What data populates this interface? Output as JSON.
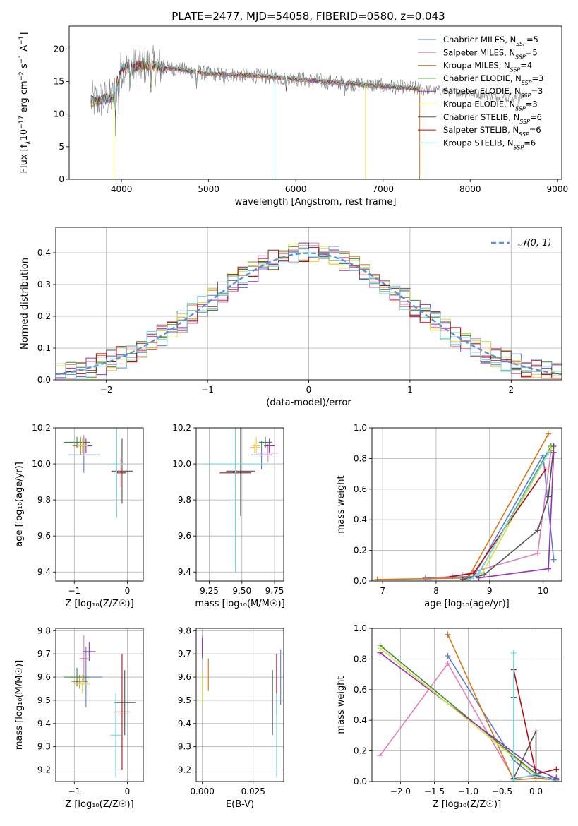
{
  "title": "PLATE=2477, MJD=54058, FIBERID=0580, z=0.043",
  "colors": {
    "Chabrier MILES": "#5b7fd6",
    "Salpeter MILES": "#e07fb8",
    "Kroupa MILES": "#d97818",
    "Chabrier ELODIE": "#3b8c3b",
    "Salpeter ELODIE": "#9b30b8",
    "Kroupa ELODIE": "#d4e040",
    "Chabrier STELIB": "#555555",
    "Salpeter STELIB": "#b01010",
    "Kroupa STELIB": "#70d8e0"
  },
  "chart_data": [
    {
      "id": "spectrum",
      "type": "line",
      "xlabel": "wavelength [Angstrom, rest frame]",
      "ylabel_parts": [
        "Flux [f",
        "λ",
        "10",
        "−17",
        " erg cm",
        "−2",
        " s",
        "−1",
        " A",
        "−1",
        "]"
      ],
      "xlim": [
        3400,
        9050
      ],
      "ylim": [
        0,
        23.5
      ],
      "xticks": [
        4000,
        5000,
        6000,
        7000,
        8000,
        9000
      ],
      "yticks": [
        0,
        5,
        10,
        15,
        20
      ],
      "grid": false,
      "legend_position": "top-right",
      "legend": [
        {
          "name": "Chabrier MILES",
          "nssp": "5"
        },
        {
          "name": "Salpeter MILES",
          "nssp": "5"
        },
        {
          "name": "Kroupa MILES",
          "nssp": "4"
        },
        {
          "name": "Chabrier ELODIE",
          "nssp": "3"
        },
        {
          "name": "Salpeter ELODIE",
          "nssp": "3"
        },
        {
          "name": "Kroupa ELODIE",
          "nssp": "3"
        },
        {
          "name": "Chabrier STELIB",
          "nssp": "6"
        },
        {
          "name": "Salpeter STELIB",
          "nssp": "6"
        },
        {
          "name": "Kroupa STELIB",
          "nssp": "6"
        }
      ],
      "nssp_label": "N",
      "nssp_sub": "SSP",
      "continuum": [
        [
          3650,
          12.0
        ],
        [
          3900,
          12.5
        ],
        [
          4000,
          17.0
        ],
        [
          4300,
          17.5
        ],
        [
          4700,
          16.8
        ],
        [
          5000,
          16.2
        ],
        [
          5500,
          15.9
        ],
        [
          6000,
          15.4
        ],
        [
          6500,
          14.8
        ],
        [
          7000,
          14.3
        ],
        [
          7400,
          13.9
        ],
        [
          8000,
          13.2
        ],
        [
          8500,
          12.4
        ],
        [
          8600,
          12.8
        ]
      ],
      "data_end": 8650,
      "model_end": 7420
    },
    {
      "id": "residuals",
      "type": "histogram",
      "xlabel": "(data-model)/error",
      "ylabel": "Normed distribution",
      "xlim": [
        -2.5,
        2.5
      ],
      "ylim": [
        0,
        0.48
      ],
      "xticks": [
        -2,
        -1,
        0,
        1,
        2
      ],
      "xticklabels": [
        "−2",
        "−1",
        "0",
        "1",
        "2"
      ],
      "yticks": [
        0.0,
        0.1,
        0.2,
        0.3,
        0.4
      ],
      "grid": true,
      "legend_position": "top-right",
      "legend": [
        "𝒩(0, 1)"
      ],
      "bins": 50,
      "bin_range": [
        -2.5,
        2.5
      ]
    },
    {
      "id": "age_vs_Z",
      "type": "errorbar",
      "xlabel": "Z [log₁₀(Z/Z☉)]",
      "ylabel": "age  [log₁₀(age/yr)]",
      "xlim": [
        -1.35,
        0.3
      ],
      "ylim": [
        9.35,
        10.2
      ],
      "xticks": [
        -1,
        0
      ],
      "xticklabels": [
        "−1",
        "0"
      ],
      "yticks": [
        9.4,
        9.6,
        9.8,
        10.0,
        10.2
      ],
      "grid": true,
      "points": [
        {
          "model": "Chabrier MILES",
          "x": -0.82,
          "xerr": 0.3,
          "y": 10.05,
          "yerr": 0.1
        },
        {
          "model": "Salpeter MILES",
          "x": -0.82,
          "xerr": 0.08,
          "y": 10.1,
          "yerr": 0.06
        },
        {
          "model": "Kroupa MILES",
          "x": -0.88,
          "xerr": 0.15,
          "y": 10.1,
          "yerr": 0.05
        },
        {
          "model": "Chabrier ELODIE",
          "x": -0.95,
          "xerr": 0.25,
          "y": 10.12,
          "yerr": 0.03
        },
        {
          "model": "Salpeter ELODIE",
          "x": -0.78,
          "xerr": 0.12,
          "y": 10.1,
          "yerr": 0.04
        },
        {
          "model": "Kroupa ELODIE",
          "x": -0.85,
          "xerr": 0.1,
          "y": 10.1,
          "yerr": 0.04
        },
        {
          "model": "Chabrier STELIB",
          "x": -0.1,
          "xerr": 0.2,
          "y": 9.96,
          "yerr": 0.18
        },
        {
          "model": "Salpeter STELIB",
          "x": -0.12,
          "xerr": 0.1,
          "y": 9.95,
          "yerr": 0.08
        },
        {
          "model": "Kroupa STELIB",
          "x": -0.2,
          "xerr": 0.15,
          "y": 10.0,
          "yerr": 0.3
        }
      ]
    },
    {
      "id": "age_vs_mass",
      "type": "errorbar",
      "xlabel": "mass [log₁₀(M/M☉)]",
      "ylabel": "",
      "xlim": [
        9.15,
        9.82
      ],
      "ylim": [
        9.35,
        10.2
      ],
      "xticks": [
        9.25,
        9.5,
        9.75
      ],
      "xticklabels": [
        "9.25",
        "9.50",
        "9.75"
      ],
      "yticks": [
        9.4,
        9.6,
        9.8,
        10.0,
        10.2
      ],
      "grid": true,
      "points": [
        {
          "model": "Chabrier MILES",
          "x": 9.65,
          "xerr": 0.08,
          "y": 10.05,
          "yerr": 0.08
        },
        {
          "model": "Salpeter MILES",
          "x": 9.7,
          "xerr": 0.08,
          "y": 10.06,
          "yerr": 0.05
        },
        {
          "model": "Kroupa MILES",
          "x": 9.6,
          "xerr": 0.04,
          "y": 10.09,
          "yerr": 0.03
        },
        {
          "model": "Chabrier ELODIE",
          "x": 9.68,
          "xerr": 0.05,
          "y": 10.12,
          "yerr": 0.03
        },
        {
          "model": "Salpeter ELODIE",
          "x": 9.71,
          "xerr": 0.04,
          "y": 10.1,
          "yerr": 0.04
        },
        {
          "model": "Kroupa ELODIE",
          "x": 9.61,
          "xerr": 0.03,
          "y": 10.1,
          "yerr": 0.05
        },
        {
          "model": "Chabrier STELIB",
          "x": 9.49,
          "xerr": 0.11,
          "y": 9.96,
          "yerr": 0.25
        },
        {
          "model": "Salpeter STELIB",
          "x": 9.45,
          "xerr": 0.12,
          "y": 9.95,
          "yerr": 0.08
        },
        {
          "model": "Kroupa STELIB",
          "x": 9.45,
          "xerr": 0.25,
          "y": 10.0,
          "yerr": 0.6
        }
      ]
    },
    {
      "id": "weight_vs_age",
      "type": "line",
      "xlabel": "age  [log₁₀(age/yr)]",
      "ylabel": "mass weight",
      "xlim": [
        6.8,
        10.35
      ],
      "ylim": [
        0,
        1.0
      ],
      "xticks": [
        7,
        8,
        9,
        10
      ],
      "yticks": [
        0.0,
        0.2,
        0.4,
        0.6,
        0.8,
        1.0
      ],
      "grid": true,
      "series": [
        {
          "model": "Chabrier MILES",
          "x": [
            7.8,
            8.7,
            10.0,
            10.2
          ],
          "y": [
            0.02,
            0.03,
            0.82,
            0.14
          ]
        },
        {
          "model": "Salpeter MILES",
          "x": [
            7.8,
            8.5,
            9.9,
            10.15
          ],
          "y": [
            0.01,
            0.04,
            0.18,
            0.85
          ]
        },
        {
          "model": "Kroupa MILES",
          "x": [
            6.9,
            8.6,
            10.1
          ],
          "y": [
            0.01,
            0.02,
            0.96
          ]
        },
        {
          "model": "Chabrier ELODIE",
          "x": [
            8.8,
            10.15
          ],
          "y": [
            0.05,
            0.88
          ]
        },
        {
          "model": "Salpeter ELODIE",
          "x": [
            8.8,
            10.1,
            10.2
          ],
          "y": [
            0.02,
            0.08,
            0.84
          ]
        },
        {
          "model": "Kroupa ELODIE",
          "x": [
            8.85,
            10.15
          ],
          "y": [
            0.04,
            0.87
          ]
        },
        {
          "model": "Chabrier STELIB",
          "x": [
            8.5,
            8.9,
            9.9,
            10.1,
            10.2
          ],
          "y": [
            0.01,
            0.04,
            0.33,
            0.55,
            0.88
          ]
        },
        {
          "model": "Salpeter STELIB",
          "x": [
            8.3,
            8.7,
            10.05
          ],
          "y": [
            0.03,
            0.05,
            0.73
          ]
        },
        {
          "model": "Kroupa STELIB",
          "x": [
            8.6,
            8.8,
            10.1
          ],
          "y": [
            0.0,
            0.05,
            0.84
          ]
        }
      ]
    },
    {
      "id": "mass_vs_Z",
      "type": "errorbar",
      "xlabel": "Z [log₁₀(Z/Z☉)]",
      "ylabel": "mass [log₁₀(M/M☉)]",
      "xlim": [
        -1.35,
        0.3
      ],
      "ylim": [
        9.15,
        9.81
      ],
      "xticks": [
        -1,
        0
      ],
      "xticklabels": [
        "−1",
        "0"
      ],
      "yticks": [
        9.2,
        9.3,
        9.4,
        9.5,
        9.6,
        9.7,
        9.8
      ],
      "grid": true,
      "points": [
        {
          "model": "Chabrier MILES",
          "x": -0.78,
          "xerr": 0.3,
          "y": 9.6,
          "yerr": 0.13
        },
        {
          "model": "Salpeter MILES",
          "x": -0.82,
          "xerr": 0.08,
          "y": 9.68,
          "yerr": 0.1
        },
        {
          "model": "Kroupa MILES",
          "x": -0.9,
          "xerr": 0.15,
          "y": 9.58,
          "yerr": 0.03
        },
        {
          "model": "Chabrier ELODIE",
          "x": -0.95,
          "xerr": 0.25,
          "y": 9.6,
          "yerr": 0.04
        },
        {
          "model": "Salpeter ELODIE",
          "x": -0.72,
          "xerr": 0.12,
          "y": 9.71,
          "yerr": 0.04
        },
        {
          "model": "Kroupa ELODIE",
          "x": -0.85,
          "xerr": 0.15,
          "y": 9.57,
          "yerr": 0.04
        },
        {
          "model": "Chabrier STELIB",
          "x": -0.05,
          "xerr": 0.2,
          "y": 9.49,
          "yerr": 0.14
        },
        {
          "model": "Salpeter STELIB",
          "x": -0.1,
          "xerr": 0.15,
          "y": 9.45,
          "yerr": 0.25
        },
        {
          "model": "Kroupa STELIB",
          "x": -0.22,
          "xerr": 0.1,
          "y": 9.35,
          "yerr": 0.18
        }
      ]
    },
    {
      "id": "mass_vs_ebv",
      "type": "errorbar",
      "xlabel": "E(B-V)",
      "ylabel": "",
      "xlim": [
        -0.003,
        0.04
      ],
      "ylim": [
        9.15,
        9.81
      ],
      "xticks": [
        0.0,
        0.025
      ],
      "xticklabels": [
        "0.000",
        "0.025"
      ],
      "yticks": [
        9.2,
        9.3,
        9.4,
        9.5,
        9.6,
        9.7,
        9.8
      ],
      "grid": true,
      "points": [
        {
          "model": "Chabrier MILES",
          "x": 0.0385,
          "xerr": 0.0,
          "y": 9.6,
          "yerr": 0.12
        },
        {
          "model": "Salpeter MILES",
          "x": 0.0,
          "xerr": 0.0,
          "y": 9.74,
          "yerr": 0.04
        },
        {
          "model": "Kroupa MILES",
          "x": 0.003,
          "xerr": 0.0,
          "y": 9.61,
          "yerr": 0.07
        },
        {
          "model": "Chabrier ELODIE",
          "x": 0.0,
          "xerr": 0.0,
          "y": 9.71,
          "yerr": 0.03
        },
        {
          "model": "Salpeter ELODIE",
          "x": 0.0,
          "xerr": 0.0,
          "y": 9.73,
          "yerr": 0.04
        },
        {
          "model": "Kroupa ELODIE",
          "x": 0.0,
          "xerr": 0.0,
          "y": 9.55,
          "yerr": 0.07
        },
        {
          "model": "Chabrier STELIB",
          "x": 0.0345,
          "xerr": 0.0,
          "y": 9.49,
          "yerr": 0.14
        },
        {
          "model": "Salpeter STELIB",
          "x": 0.0365,
          "xerr": 0.0,
          "y": 9.57,
          "yerr": 0.13
        },
        {
          "model": "Kroupa STELIB",
          "x": 0.0365,
          "xerr": 0.0,
          "y": 9.35,
          "yerr": 0.18
        }
      ]
    },
    {
      "id": "weight_vs_Z",
      "type": "line",
      "xlabel": "Z [log₁₀(Z/Z☉)]",
      "ylabel": "mass weight",
      "xlim": [
        -2.42,
        0.38
      ],
      "ylim": [
        0,
        1.0
      ],
      "xticks": [
        -2.0,
        -1.5,
        -1.0,
        -0.5,
        0.0
      ],
      "xticklabels": [
        "−2.0",
        "−1.5",
        "−1.0",
        "−0.5",
        "0.0"
      ],
      "yticks": [
        0.0,
        0.2,
        0.4,
        0.6,
        0.8,
        1.0
      ],
      "grid": true,
      "series": [
        {
          "model": "Chabrier MILES",
          "x": [
            -1.3,
            -0.33,
            0.0,
            0.3
          ],
          "y": [
            0.82,
            0.14,
            0.02,
            0.03
          ]
        },
        {
          "model": "Salpeter MILES",
          "x": [
            -2.3,
            -1.3,
            -0.33,
            0.0
          ],
          "y": [
            0.17,
            0.77,
            0.02,
            0.04
          ]
        },
        {
          "model": "Kroupa MILES",
          "x": [
            -1.3,
            -0.33,
            0.0,
            0.3
          ],
          "y": [
            0.96,
            0.01,
            0.02,
            0.01
          ]
        },
        {
          "model": "Chabrier ELODIE",
          "x": [
            -2.3,
            0.0
          ],
          "y": [
            0.89,
            0.05
          ]
        },
        {
          "model": "Salpeter ELODIE",
          "x": [
            -2.3,
            0.0,
            0.3
          ],
          "y": [
            0.84,
            0.08,
            0.02
          ]
        },
        {
          "model": "Kroupa ELODIE",
          "x": [
            -2.3,
            0.0
          ],
          "y": [
            0.87,
            0.04
          ]
        },
        {
          "model": "Chabrier STELIB",
          "x": [
            -0.33,
            -0.33,
            0.0,
            0.0,
            0.3
          ],
          "y": [
            0.55,
            0.02,
            0.33,
            0.04,
            0.01
          ]
        },
        {
          "model": "Salpeter STELIB",
          "x": [
            -0.33,
            0.0,
            0.3
          ],
          "y": [
            0.73,
            0.05,
            0.08
          ]
        },
        {
          "model": "Kroupa STELIB",
          "x": [
            -0.33,
            -0.33,
            0.0,
            0.3
          ],
          "y": [
            0.84,
            0.01,
            0.05,
            0.0
          ]
        }
      ]
    }
  ]
}
